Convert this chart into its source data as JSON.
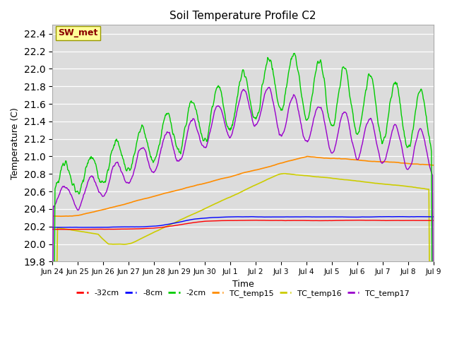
{
  "title": "Soil Temperature Profile C2",
  "xlabel": "Time",
  "ylabel": "Temperature (C)",
  "ylim": [
    19.8,
    22.5
  ],
  "annotation": "SW_met",
  "annotation_color": "#8B0000",
  "annotation_bg": "#FFFF99",
  "bg_color": "#DCDCDC",
  "plot_area_color": "#DCDCDC",
  "series_colors": {
    "-32cm": "#FF0000",
    "-8cm": "#0000FF",
    "-2cm": "#00CC00",
    "TC_temp15": "#FF8C00",
    "TC_temp16": "#CCCC00",
    "TC_temp17": "#9900CC"
  },
  "x_tick_labels": [
    "Jun 24",
    "Jun 25",
    "Jun 26",
    "Jun 27",
    "Jun 28",
    "Jun 29",
    "Jun 30",
    "Jul 1",
    "Jul 2",
    "Jul 3",
    "Jul 4",
    "Jul 5",
    "Jul 6",
    "Jul 7",
    "Jul 8",
    "Jul 9"
  ],
  "n_points": 750,
  "start_day": 0,
  "end_day": 15
}
